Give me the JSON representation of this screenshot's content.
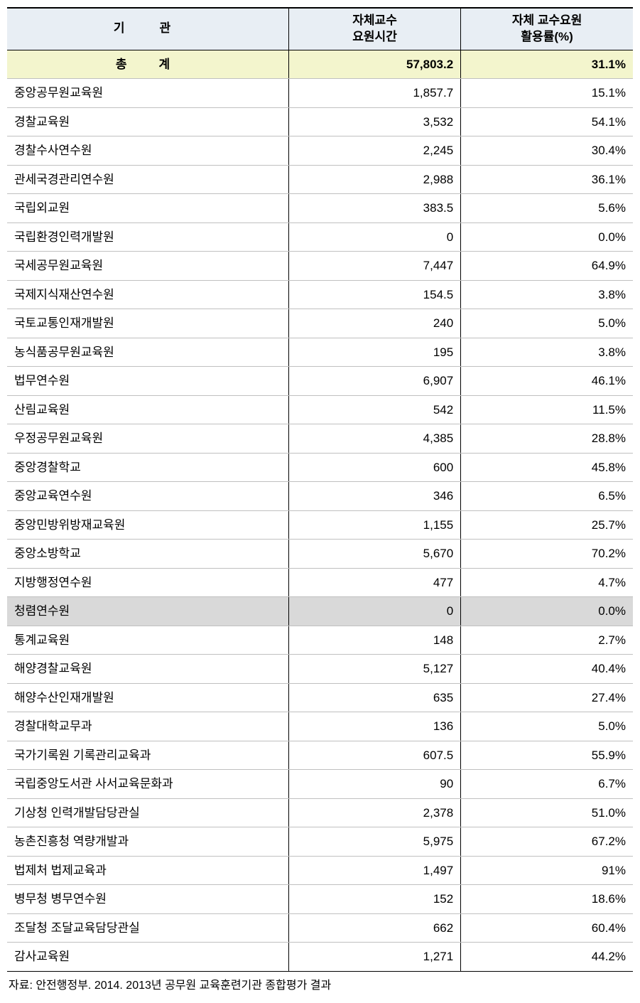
{
  "table": {
    "headers": {
      "institution": "기　관",
      "hours": "자체교수\n요원시간",
      "rate": "자체 교수요원\n활용률(%)"
    },
    "total": {
      "label": "총　계",
      "hours": "57,803.2",
      "rate": "31.1%"
    },
    "rows": [
      {
        "institution": "중앙공무원교육원",
        "hours": "1,857.7",
        "rate": "15.1%",
        "highlighted": false
      },
      {
        "institution": "경찰교육원",
        "hours": "3,532",
        "rate": "54.1%",
        "highlighted": false
      },
      {
        "institution": "경찰수사연수원",
        "hours": "2,245",
        "rate": "30.4%",
        "highlighted": false
      },
      {
        "institution": "관세국경관리연수원",
        "hours": "2,988",
        "rate": "36.1%",
        "highlighted": false
      },
      {
        "institution": "국립외교원",
        "hours": "383.5",
        "rate": "5.6%",
        "highlighted": false
      },
      {
        "institution": "국립환경인력개발원",
        "hours": "0",
        "rate": "0.0%",
        "highlighted": false
      },
      {
        "institution": "국세공무원교육원",
        "hours": "7,447",
        "rate": "64.9%",
        "highlighted": false
      },
      {
        "institution": "국제지식재산연수원",
        "hours": "154.5",
        "rate": "3.8%",
        "highlighted": false
      },
      {
        "institution": "국토교통인재개발원",
        "hours": "240",
        "rate": "5.0%",
        "highlighted": false
      },
      {
        "institution": "농식품공무원교육원",
        "hours": "195",
        "rate": "3.8%",
        "highlighted": false
      },
      {
        "institution": "법무연수원",
        "hours": "6,907",
        "rate": "46.1%",
        "highlighted": false
      },
      {
        "institution": "산림교육원",
        "hours": "542",
        "rate": "11.5%",
        "highlighted": false
      },
      {
        "institution": "우정공무원교육원",
        "hours": "4,385",
        "rate": "28.8%",
        "highlighted": false
      },
      {
        "institution": "중앙경찰학교",
        "hours": "600",
        "rate": "45.8%",
        "highlighted": false
      },
      {
        "institution": "중앙교육연수원",
        "hours": "346",
        "rate": "6.5%",
        "highlighted": false
      },
      {
        "institution": "중앙민방위방재교육원",
        "hours": "1,155",
        "rate": "25.7%",
        "highlighted": false
      },
      {
        "institution": "중앙소방학교",
        "hours": "5,670",
        "rate": "70.2%",
        "highlighted": false
      },
      {
        "institution": "지방행정연수원",
        "hours": "477",
        "rate": "4.7%",
        "highlighted": false
      },
      {
        "institution": "청렴연수원",
        "hours": "0",
        "rate": "0.0%",
        "highlighted": true
      },
      {
        "institution": "통계교육원",
        "hours": "148",
        "rate": "2.7%",
        "highlighted": false
      },
      {
        "institution": "해양경찰교육원",
        "hours": "5,127",
        "rate": "40.4%",
        "highlighted": false
      },
      {
        "institution": "해양수산인재개발원",
        "hours": "635",
        "rate": "27.4%",
        "highlighted": false
      },
      {
        "institution": "경찰대학교무과",
        "hours": "136",
        "rate": "5.0%",
        "highlighted": false
      },
      {
        "institution": "국가기록원 기록관리교육과",
        "hours": "607.5",
        "rate": "55.9%",
        "highlighted": false
      },
      {
        "institution": "국립중앙도서관 사서교육문화과",
        "hours": "90",
        "rate": "6.7%",
        "highlighted": false
      },
      {
        "institution": "기상청 인력개발담당관실",
        "hours": "2,378",
        "rate": "51.0%",
        "highlighted": false
      },
      {
        "institution": "농촌진흥청 역량개발과",
        "hours": "5,975",
        "rate": "67.2%",
        "highlighted": false
      },
      {
        "institution": "법제처 법제교육과",
        "hours": "1,497",
        "rate": "91%",
        "highlighted": false
      },
      {
        "institution": "병무청 병무연수원",
        "hours": "152",
        "rate": "18.6%",
        "highlighted": false
      },
      {
        "institution": "조달청 조달교육담당관실",
        "hours": "662",
        "rate": "60.4%",
        "highlighted": false
      },
      {
        "institution": "감사교육원",
        "hours": "1,271",
        "rate": "44.2%",
        "highlighted": false
      }
    ]
  },
  "source": "자료: 안전행정부. 2014. 2013년 공무원 교육훈련기관 종합평가 결과",
  "colors": {
    "header_bg": "#e8eef4",
    "total_bg": "#f3f5cd",
    "highlight_bg": "#d9d9d9",
    "border_dark": "#000000",
    "border_light": "#c0c0c0",
    "background": "#ffffff"
  }
}
